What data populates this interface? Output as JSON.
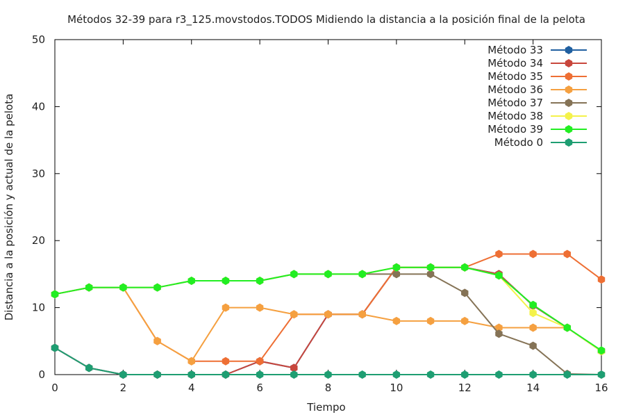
{
  "chart_data": {
    "type": "line",
    "title": "Métodos 32-39 para r3_125.movstodos.TODOS Midiendo la distancia a la posición final de la pelota",
    "xlabel": "Tiempo",
    "ylabel": "Distancia a la posición y actual de la pelota",
    "xlim": [
      0,
      16
    ],
    "ylim": [
      0,
      50
    ],
    "xticks": [
      0,
      2,
      4,
      6,
      8,
      10,
      12,
      14,
      16
    ],
    "yticks": [
      0,
      10,
      20,
      30,
      40,
      50
    ],
    "grid": false,
    "legend_position": "top-right",
    "x": [
      0,
      1,
      2,
      3,
      4,
      5,
      6,
      7,
      8,
      9,
      10,
      11,
      12,
      13,
      14,
      15,
      16
    ],
    "series": [
      {
        "name": "Método 33",
        "color": "#1f5fa0",
        "values": [
          4,
          1,
          0,
          0,
          0,
          0,
          2,
          1,
          9,
          9,
          16,
          16,
          16,
          15,
          10.3,
          7,
          3.5
        ]
      },
      {
        "name": "Método 34",
        "color": "#c8463c",
        "values": [
          4,
          1,
          0,
          0,
          0,
          0,
          2,
          1,
          9,
          9,
          16,
          16,
          16,
          15,
          10.3,
          7,
          3.5
        ]
      },
      {
        "name": "Método 35",
        "color": "#ee6f34",
        "values": [
          12,
          13,
          13,
          5,
          2,
          2,
          2,
          9,
          9,
          9,
          16,
          16,
          16,
          18,
          18,
          18,
          14.2
        ]
      },
      {
        "name": "Método 36",
        "color": "#f5a040",
        "values": [
          12,
          13,
          13,
          5,
          2,
          10,
          10,
          9,
          9,
          9,
          8,
          8,
          8,
          7,
          7,
          7,
          3.5
        ]
      },
      {
        "name": "Método 37",
        "color": "#857356",
        "values": [
          12,
          13,
          13,
          13,
          14,
          14,
          14,
          15,
          15,
          15,
          15,
          15,
          12.2,
          6.1,
          4.3,
          0.1,
          0
        ]
      },
      {
        "name": "Método 38",
        "color": "#f4f24a",
        "values": [
          12,
          13,
          13,
          13,
          14,
          14,
          14,
          15,
          15,
          15,
          16,
          16,
          16,
          14.8,
          9.2,
          7,
          3.5
        ]
      },
      {
        "name": "Método 39",
        "color": "#22ee22",
        "values": [
          12,
          13,
          13,
          13,
          14,
          14,
          14,
          15,
          15,
          15,
          16,
          16,
          16,
          14.8,
          10.4,
          7,
          3.6
        ]
      },
      {
        "name": "Método 0",
        "color": "#1e9e72",
        "values": [
          4,
          1,
          0,
          0,
          0,
          0,
          0,
          0,
          0,
          0,
          0,
          0,
          0,
          0,
          0,
          0,
          0
        ]
      }
    ]
  }
}
